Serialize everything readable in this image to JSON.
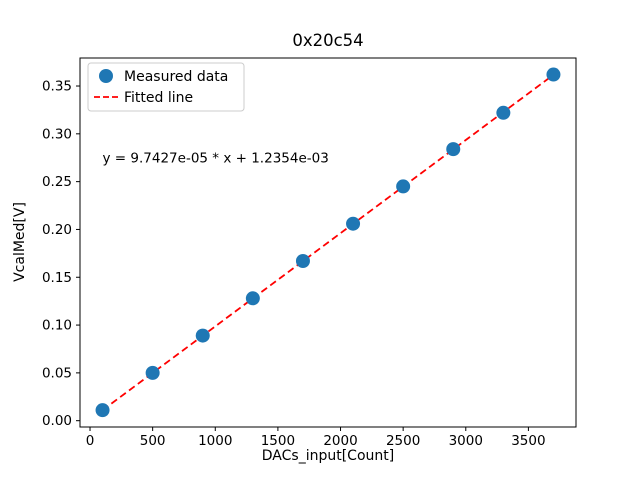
{
  "window": {
    "background": "#ffffff"
  },
  "chart_data": {
    "type": "scatter",
    "title": "0x20c54",
    "xlabel": "DACs_input[Count]",
    "ylabel": "VcalMed[V]",
    "annotation": "y = 9.7427e-05 * x + 1.2354e-03",
    "annotation_xy": [
      100,
      0.27
    ],
    "xlim": [
      -80,
      3880
    ],
    "ylim": [
      -0.0066,
      0.3793
    ],
    "xticks": [
      0,
      500,
      1000,
      1500,
      2000,
      2500,
      3000,
      3500
    ],
    "yticks": [
      0.0,
      0.05,
      0.1,
      0.15,
      0.2,
      0.25,
      0.3,
      0.35
    ],
    "grid": false,
    "legend": {
      "position": "upper left",
      "labels": [
        "Measured data",
        "Fitted line"
      ]
    },
    "series": [
      {
        "name": "Measured data",
        "kind": "scatter",
        "color": "#1f77b4",
        "marker": "circle",
        "x": [
          100,
          500,
          900,
          1300,
          1700,
          2100,
          2500,
          2900,
          3300,
          3700
        ],
        "y": [
          0.011,
          0.05,
          0.089,
          0.128,
          0.167,
          0.206,
          0.245,
          0.284,
          0.322,
          0.362
        ]
      },
      {
        "name": "Fitted line",
        "kind": "line",
        "color": "#ff0000",
        "style": "dashed",
        "slope": 9.7427e-05,
        "intercept": 0.0012354,
        "x_range": [
          100,
          3700
        ]
      }
    ]
  }
}
